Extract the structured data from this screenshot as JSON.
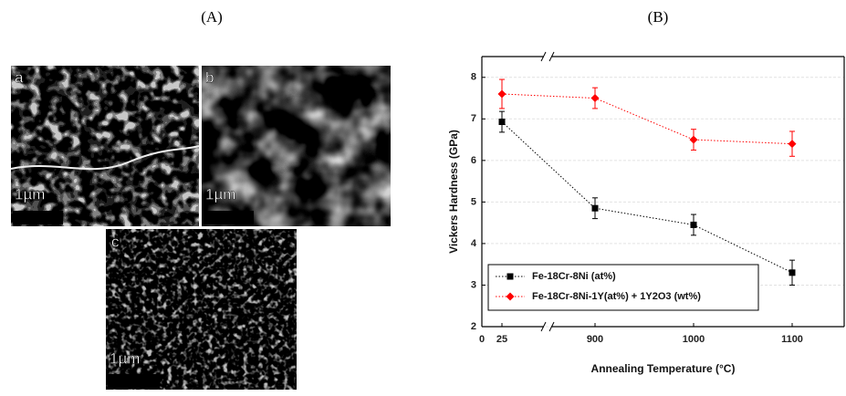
{
  "panel_labels": [
    "(A)",
    "(B)"
  ],
  "micrographs": [
    {
      "label": "a",
      "scale_bar": "1µm"
    },
    {
      "label": "b",
      "scale_bar": "1µm"
    },
    {
      "label": "c",
      "scale_bar": "1µm"
    }
  ],
  "chart_data": {
    "type": "line",
    "x_label": "Annealing Temperature (°C)",
    "y_label": "Vickers Hardness (GPa)",
    "x": [
      25,
      900,
      1000,
      1100
    ],
    "xlim": [
      0,
      1150
    ],
    "xticks": [
      0,
      25,
      900,
      1000,
      1100
    ],
    "ylim": [
      2,
      8.5
    ],
    "yticks": [
      2,
      3,
      4,
      5,
      6,
      7,
      8
    ],
    "grid": true,
    "legend": "lower left",
    "series": [
      {
        "name": "Fe-18Cr-8Ni (at%)",
        "color": "#000000",
        "marker": "square",
        "values": [
          6.93,
          4.85,
          4.45,
          3.3
        ],
        "errors": [
          0.25,
          0.25,
          0.25,
          0.3
        ]
      },
      {
        "name": "Fe-18Cr-8Ni-1Y(at%) + 1Y2O3 (wt%)",
        "color": "#ff0000",
        "marker": "diamond",
        "values": [
          7.6,
          7.5,
          6.5,
          6.4
        ],
        "errors": [
          0.35,
          0.25,
          0.25,
          0.3
        ]
      }
    ]
  }
}
